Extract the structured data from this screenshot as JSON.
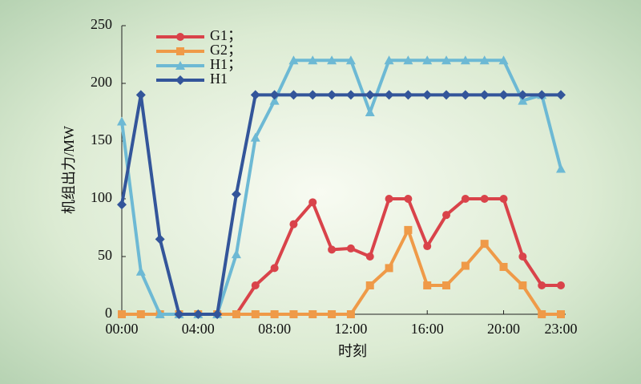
{
  "chart_data": {
    "type": "line",
    "x_label": "时刻",
    "y_label": "机组出力/MW",
    "categories": [
      "00:00",
      null,
      null,
      null,
      "04:00",
      null,
      null,
      null,
      "08:00",
      null,
      null,
      null,
      "12:00",
      null,
      null,
      null,
      "16:00",
      null,
      null,
      null,
      "20:00",
      null,
      null,
      "23:00"
    ],
    "series": [
      {
        "name": "G1；",
        "color": "#d9434a",
        "marker": "circle",
        "values": [
          0,
          0,
          0,
          0,
          0,
          0,
          0,
          25,
          40,
          78,
          97,
          56,
          57,
          50,
          100,
          100,
          59,
          86,
          100,
          100,
          100,
          50,
          25,
          25
        ]
      },
      {
        "name": "G2；",
        "color": "#ef9a48",
        "marker": "square",
        "values": [
          0,
          0,
          0,
          0,
          0,
          0,
          0,
          0,
          0,
          0,
          0,
          0,
          0,
          25,
          40,
          73,
          25,
          25,
          42,
          61,
          41,
          25,
          0,
          0
        ]
      },
      {
        "name": "H1；",
        "color": "#6db9d4",
        "marker": "triangle",
        "values": [
          167,
          37,
          0,
          0,
          0,
          0,
          52,
          153,
          185,
          220,
          220,
          220,
          220,
          175,
          220,
          220,
          220,
          220,
          220,
          220,
          220,
          185,
          190,
          126
        ]
      },
      {
        "name": "H1",
        "color": "#33559a",
        "marker": "diamond",
        "values": [
          95,
          190,
          65,
          0,
          0,
          0,
          104,
          190,
          190,
          190,
          190,
          190,
          190,
          190,
          190,
          190,
          190,
          190,
          190,
          190,
          190,
          190,
          190,
          190
        ]
      }
    ],
    "ylim": [
      0,
      250
    ],
    "yticks": [
      0,
      50,
      100,
      150,
      200,
      250
    ],
    "grid": false
  }
}
